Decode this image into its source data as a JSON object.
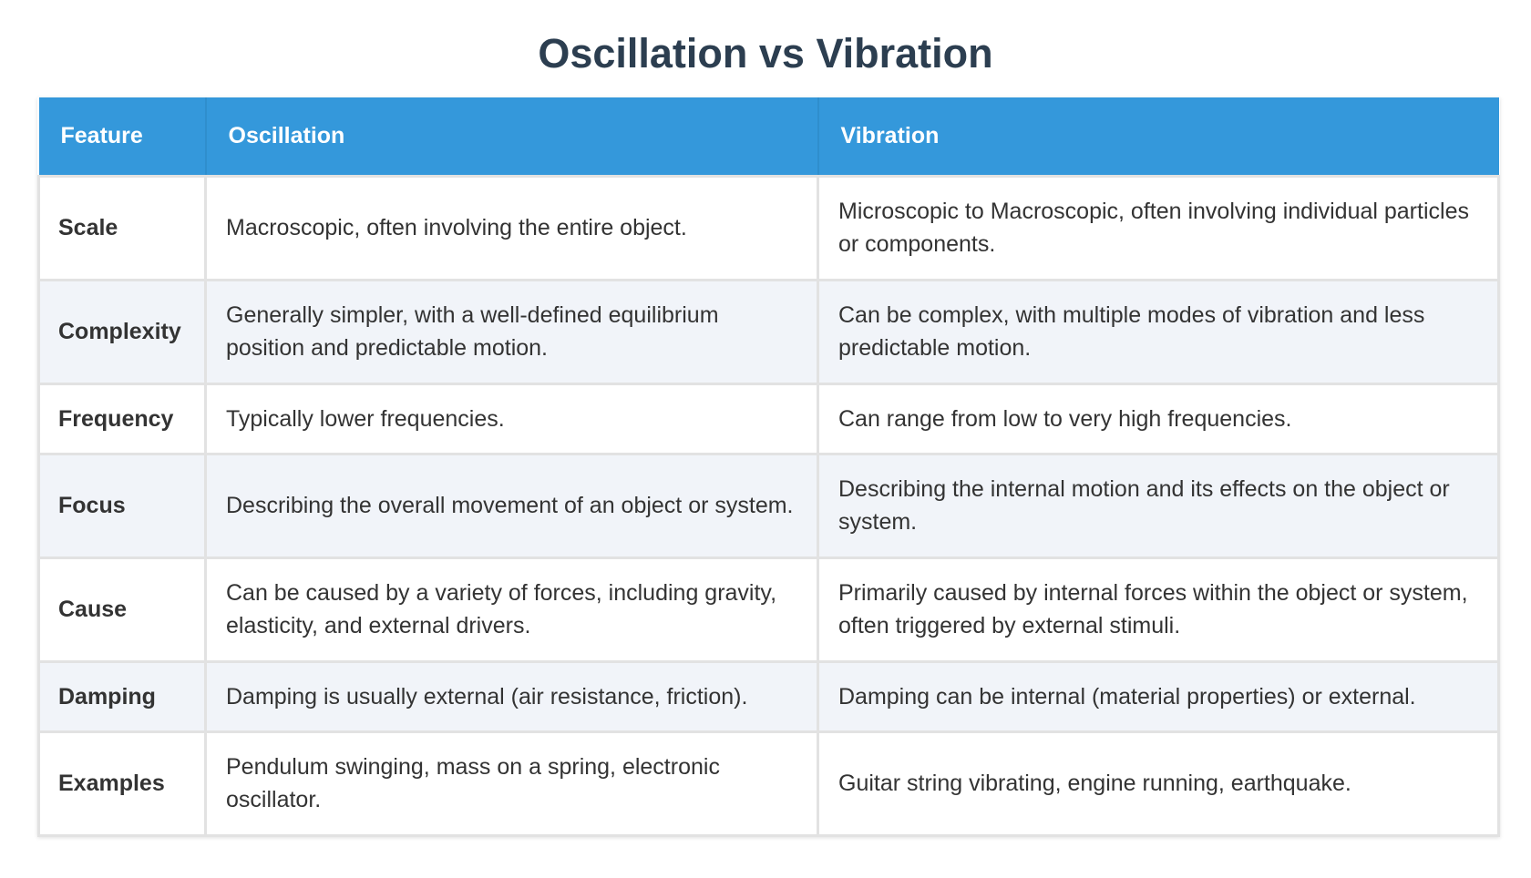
{
  "title": "Oscillation vs Vibration",
  "table": {
    "headers": [
      "Feature",
      "Oscillation",
      "Vibration"
    ],
    "rows": [
      {
        "feature": "Scale",
        "oscillation": "Macroscopic, often involving the entire object.",
        "vibration": "Microscopic to Macroscopic, often involving individual particles or components."
      },
      {
        "feature": "Complexity",
        "oscillation": "Generally simpler, with a well-defined equilibrium position and predictable motion.",
        "vibration": "Can be complex, with multiple modes of vibration and less predictable motion."
      },
      {
        "feature": "Frequency",
        "oscillation": "Typically lower frequencies.",
        "vibration": "Can range from low to very high frequencies."
      },
      {
        "feature": "Focus",
        "oscillation": "Describing the overall movement of an object or system.",
        "vibration": "Describing the internal motion and its effects on the object or system."
      },
      {
        "feature": "Cause",
        "oscillation": "Can be caused by a variety of forces, including gravity, elasticity, and external drivers.",
        "vibration": "Primarily caused by internal forces within the object or system, often triggered by external stimuli."
      },
      {
        "feature": "Damping",
        "oscillation": "Damping is usually external (air resistance, friction).",
        "vibration": "Damping can be internal (material properties) or external."
      },
      {
        "feature": "Examples",
        "oscillation": "Pendulum swinging, mass on a spring, electronic oscillator.",
        "vibration": "Guitar string vibrating, engine running, earthquake."
      }
    ]
  },
  "colors": {
    "title": "#2c3e50",
    "header_bg": "#3498db",
    "header_text": "#ffffff",
    "row_alt_bg": "#f1f4f9",
    "border": "#e2e2e2",
    "body_text": "#333333"
  }
}
